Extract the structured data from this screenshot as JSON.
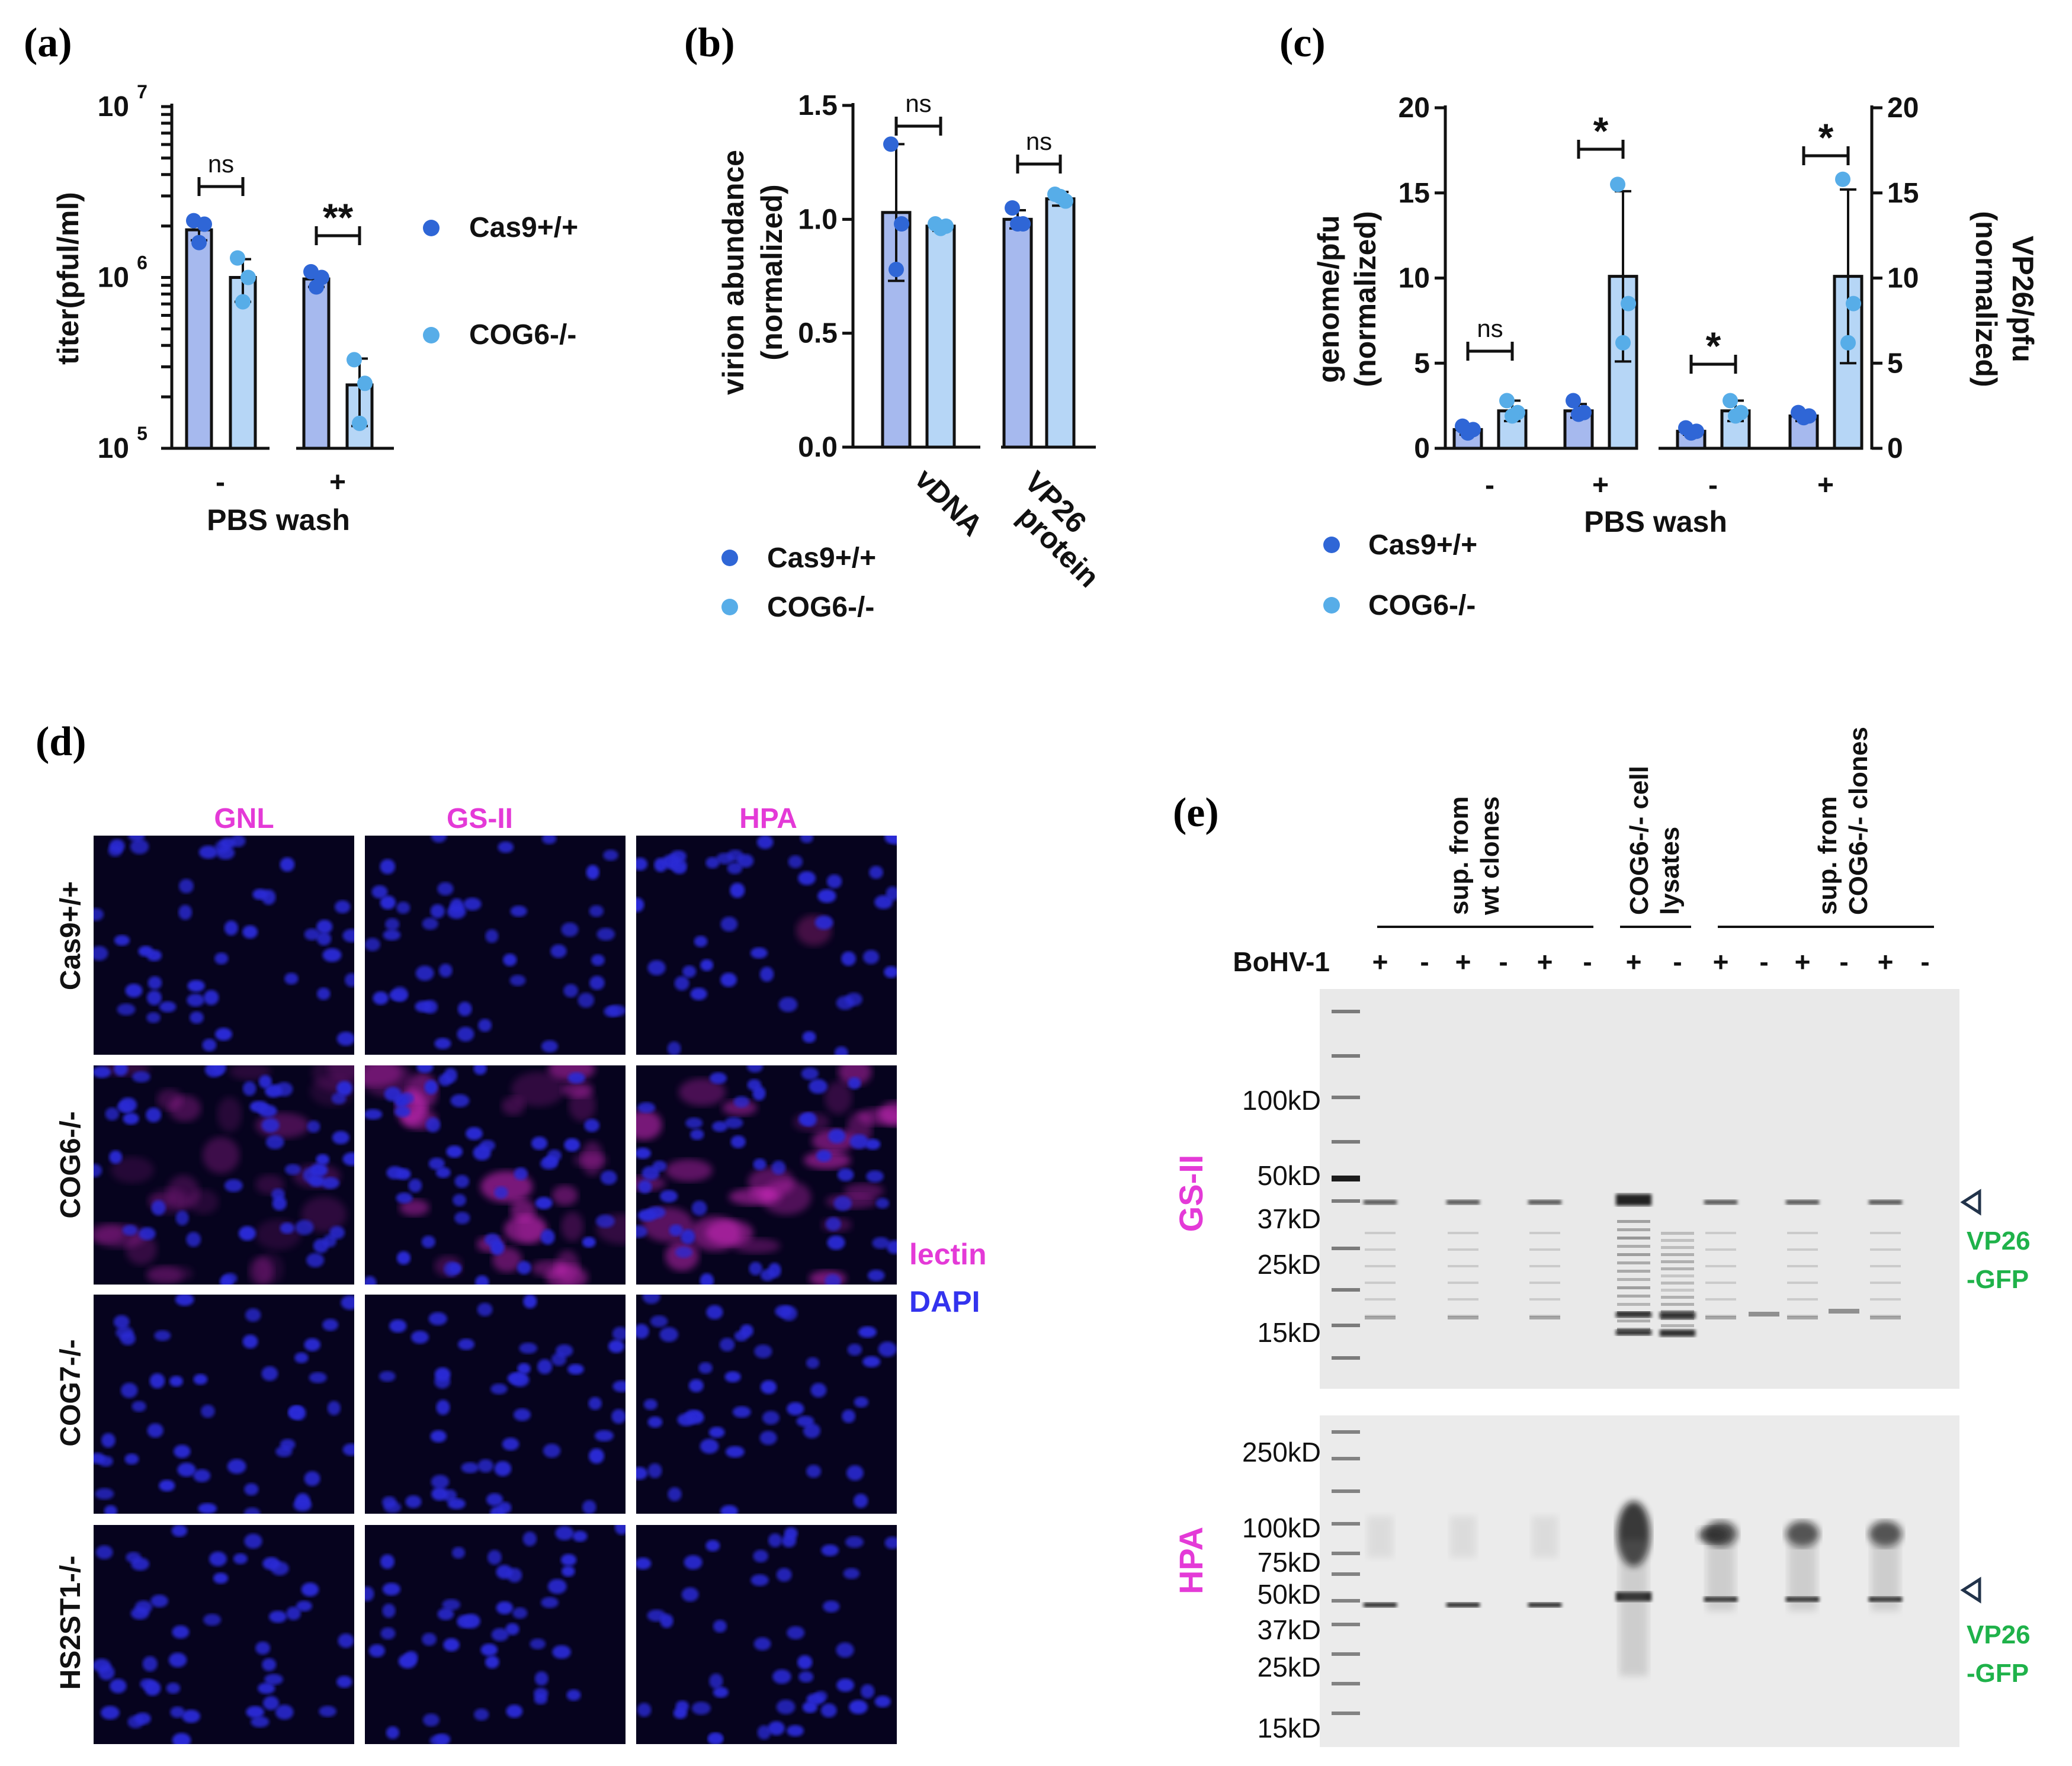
{
  "panels": {
    "a": "(a)",
    "b": "(b)",
    "c": "(c)",
    "d": "(d)",
    "e": "(e)"
  },
  "colors": {
    "cas9": "#2f66d6",
    "cog6": "#57ade8",
    "bar_cas9": "#a6b9ee",
    "bar_cog6": "#b6d6f6",
    "lectin": "#e43ad7",
    "dapi": "#3333ee",
    "vp26": "#1fb24a"
  },
  "legend": {
    "cas9": "Cas9+/+",
    "cog6": "COG6-/-"
  },
  "chart_data": [
    {
      "id": "a",
      "type": "bar",
      "title": "",
      "ylabel": "titer(pful/ml)",
      "xlabel": "PBS wash",
      "yscale": "log",
      "ylim": [
        100000,
        10000000
      ],
      "yticks": [
        {
          "base": "10",
          "exp": "5"
        },
        {
          "base": "10",
          "exp": "6"
        },
        {
          "base": "10",
          "exp": "7"
        }
      ],
      "categories": [
        "-",
        "+"
      ],
      "series": [
        {
          "name": "Cas9+/+",
          "values": [
            1900000,
            980000
          ],
          "errors": [
            250000,
            100000
          ],
          "points": [
            [
              2150000,
              2050000,
              1600000
            ],
            [
              1080000,
              1000000,
              880000
            ]
          ]
        },
        {
          "name": "COG6-/-",
          "values": [
            1000000,
            235000
          ],
          "errors": [
            280000,
            100000
          ],
          "points": [
            [
              1300000,
              1000000,
              720000
            ],
            [
              330000,
              240000,
              140000
            ]
          ]
        }
      ],
      "significance": [
        "ns",
        "**"
      ]
    },
    {
      "id": "b",
      "type": "bar",
      "title": "",
      "ylabel": "virion abundance\n(normalized)",
      "ylim": [
        0,
        1.5
      ],
      "yticks": [
        "0.0",
        "0.5",
        "1.0",
        "1.5"
      ],
      "categories": [
        "vDNA",
        "VP26\nprotein"
      ],
      "series": [
        {
          "name": "Cas9+/+",
          "values": [
            1.03,
            1.0
          ],
          "errors": [
            0.3,
            0.04
          ],
          "points": [
            [
              1.33,
              0.98,
              0.78
            ],
            [
              1.05,
              0.98,
              0.98
            ]
          ]
        },
        {
          "name": "COG6-/-",
          "values": [
            0.97,
            1.09
          ],
          "errors": [
            0.02,
            0.03
          ],
          "points": [
            [
              0.98,
              0.97,
              0.96
            ],
            [
              1.11,
              1.08,
              1.1
            ]
          ]
        }
      ],
      "significance": [
        "ns",
        "ns"
      ]
    },
    {
      "id": "c",
      "type": "bar",
      "title": "",
      "ylabel": "genome/pfu\n(normalized)",
      "ylabel_right": "VP26/pfu\n(normalized)",
      "xlabel": "PBS wash",
      "ylim": [
        0,
        20
      ],
      "yticks": [
        "0",
        "5",
        "10",
        "15",
        "20"
      ],
      "categories": [
        "-",
        "+",
        "-",
        "+"
      ],
      "series": [
        {
          "name": "Cas9+/+",
          "values": [
            1.1,
            2.2,
            1.0,
            1.9
          ],
          "errors": [
            0.3,
            0.4,
            0.2,
            0.3
          ],
          "points": [
            [
              1.3,
              1.1,
              0.9
            ],
            [
              2.8,
              2.1,
              2.0
            ],
            [
              1.2,
              1.0,
              0.9
            ],
            [
              2.1,
              1.9,
              1.8
            ]
          ]
        },
        {
          "name": "COG6-/-",
          "values": [
            2.2,
            10.1,
            2.2,
            10.1
          ],
          "errors": [
            0.6,
            5.0,
            0.6,
            5.1
          ],
          "points": [
            [
              2.8,
              2.1,
              1.9
            ],
            [
              15.5,
              8.5,
              6.2
            ],
            [
              2.8,
              2.1,
              1.9
            ],
            [
              15.8,
              8.5,
              6.2
            ]
          ]
        }
      ],
      "significance": [
        "ns",
        "*",
        "*",
        "*"
      ]
    }
  ],
  "panel_d": {
    "columns": [
      "GNL",
      "GS-II",
      "HPA"
    ],
    "rows": [
      "Cas9+/+",
      "COG6-/-",
      "COG7-/-",
      "HS2ST1-/-"
    ],
    "legend": {
      "lectin": "lectin",
      "dapi": "DAPI"
    }
  },
  "panel_e": {
    "group_labels": [
      [
        "sup. from",
        "wt clones"
      ],
      [
        "COG6-/- cell",
        "lysates"
      ],
      [
        "sup. from",
        "COG6-/- clones"
      ]
    ],
    "bohv_label": "BoHV-1",
    "lanes": [
      "+",
      "-",
      "+",
      "-",
      "+",
      "-",
      "+",
      "-",
      "+",
      "-",
      "+",
      "-",
      "+",
      "-"
    ],
    "blots": [
      {
        "name": "GS-II",
        "markers": [
          "100kD",
          "50kD",
          "37kD",
          "25kD",
          "15kD"
        ]
      },
      {
        "name": "HPA",
        "markers": [
          "250kD",
          "100kD",
          "75kD",
          "50kD",
          "37kD",
          "25kD",
          "15kD"
        ]
      }
    ],
    "band_label": [
      "VP26",
      "-GFP"
    ]
  }
}
